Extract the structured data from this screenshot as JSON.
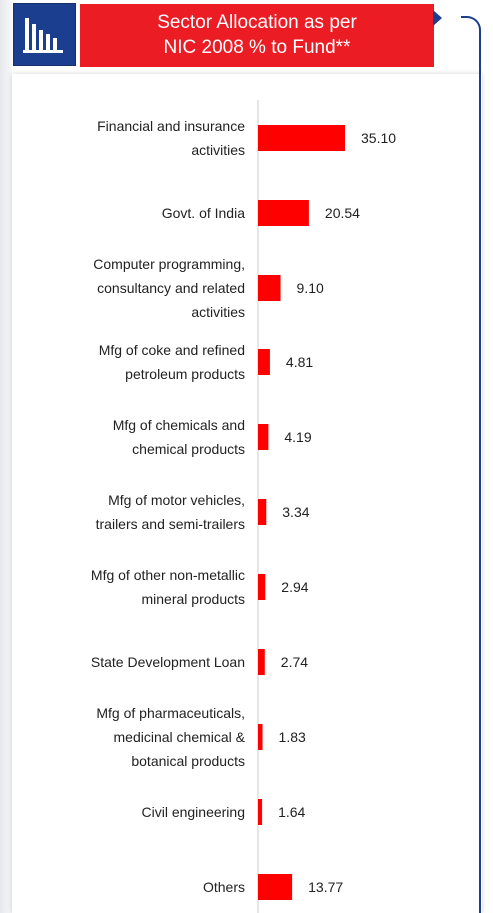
{
  "header": {
    "title": "Sector Allocation as per\nNIC 2008 % to Fund**",
    "icon": "bar-chart-icon",
    "accent_color": "#ec1c24",
    "icon_bg_color": "#1b3e8e"
  },
  "chart_data": {
    "type": "bar",
    "orientation": "horizontal",
    "title": "Sector Allocation as per NIC 2008 % to Fund**",
    "categories": [
      "Financial and insurance\nactivities",
      "Govt. of India",
      "Computer programming,\nconsultancy and related\nactivities",
      "Mfg of coke and refined\npetroleum products",
      "Mfg of chemicals and\nchemical products",
      "Mfg of motor vehicles,\ntrailers and semi-trailers",
      "Mfg of other non-metallic\nmineral products",
      "State Development Loan",
      "Mfg of pharmaceuticals,\nmedicinal chemical &\nbotanical products",
      "Civil engineering",
      "Others"
    ],
    "values": [
      35.1,
      20.54,
      9.1,
      4.81,
      4.19,
      3.34,
      2.94,
      2.74,
      1.83,
      1.64,
      13.77
    ],
    "value_labels": [
      "35.10",
      "20.54",
      "9.10",
      "4.81",
      "4.19",
      "3.34",
      "2.94",
      "2.74",
      "1.83",
      "1.64",
      "13.77"
    ],
    "bar_color": "#ff0000",
    "grid": false,
    "legend": "none"
  }
}
